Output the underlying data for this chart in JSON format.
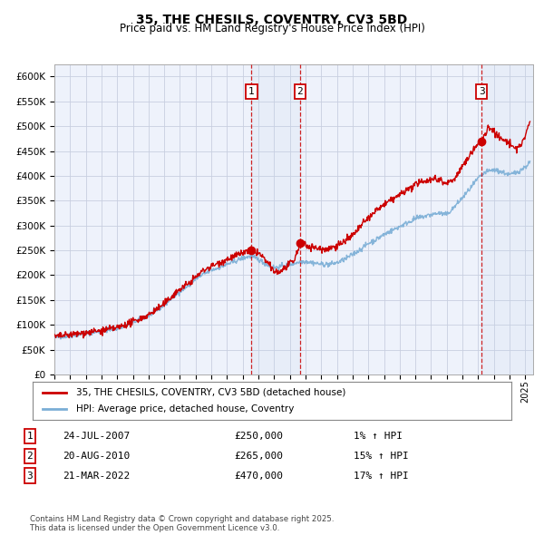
{
  "title": "35, THE CHESILS, COVENTRY, CV3 5BD",
  "subtitle": "Price paid vs. HM Land Registry's House Price Index (HPI)",
  "x_start": 1995.0,
  "x_end": 2025.5,
  "y_min": 0,
  "y_max": 625000,
  "y_ticks": [
    0,
    50000,
    100000,
    150000,
    200000,
    250000,
    300000,
    350000,
    400000,
    450000,
    500000,
    550000,
    600000
  ],
  "red_color": "#cc0000",
  "blue_color": "#7aaed6",
  "bg_color": "#eef2fb",
  "grid_color": "#c8cfe0",
  "sale_1": {
    "date_num": 2007.56,
    "price": 250000,
    "label": "1",
    "date_str": "24-JUL-2007",
    "hpi_pct": "1%"
  },
  "sale_2": {
    "date_num": 2010.64,
    "price": 265000,
    "label": "2",
    "date_str": "20-AUG-2010",
    "hpi_pct": "15%"
  },
  "sale_3": {
    "date_num": 2022.22,
    "price": 470000,
    "label": "3",
    "date_str": "21-MAR-2022",
    "hpi_pct": "17%"
  },
  "legend_line1": "35, THE CHESILS, COVENTRY, CV3 5BD (detached house)",
  "legend_line2": "HPI: Average price, detached house, Coventry",
  "footnote": "Contains HM Land Registry data © Crown copyright and database right 2025.\nThis data is licensed under the Open Government Licence v3.0.",
  "x_ticks": [
    1995,
    1996,
    1997,
    1998,
    1999,
    2000,
    2001,
    2002,
    2003,
    2004,
    2005,
    2006,
    2007,
    2008,
    2009,
    2010,
    2011,
    2012,
    2013,
    2014,
    2015,
    2016,
    2017,
    2018,
    2019,
    2020,
    2021,
    2022,
    2023,
    2024,
    2025
  ]
}
